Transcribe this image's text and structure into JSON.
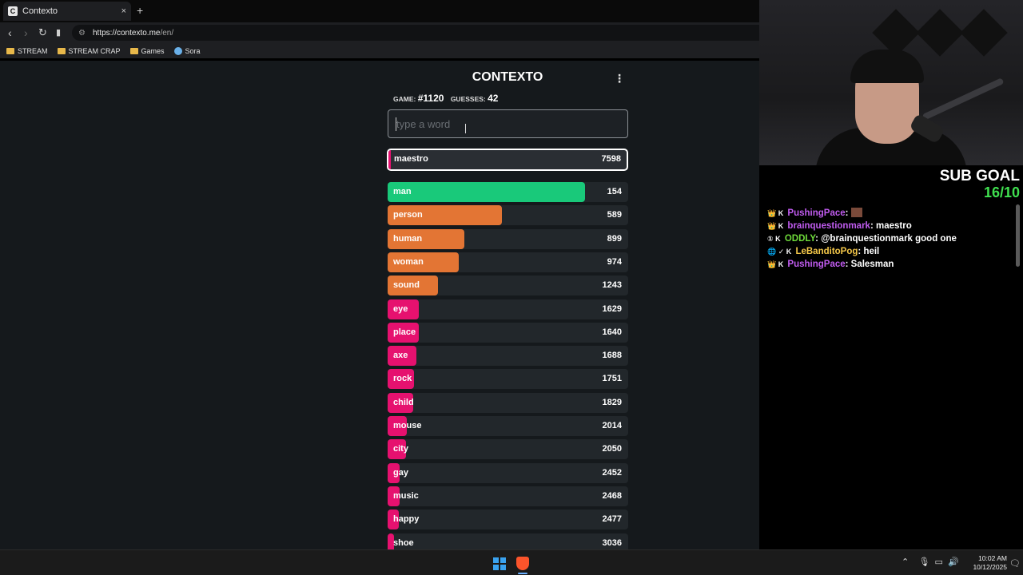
{
  "browser": {
    "tab_title": "Contexto",
    "tab_favicon": "C",
    "new_tab": "+",
    "tab_close": "×",
    "url_host": "https://contexto.me",
    "url_path": "/en/",
    "bookmarks": [
      {
        "label": "STREAM",
        "icon": "folder-icon"
      },
      {
        "label": "STREAM CRAP",
        "icon": "folder-icon"
      },
      {
        "label": "Games",
        "icon": "folder-icon"
      },
      {
        "label": "Sora",
        "icon": "sora-icon"
      }
    ]
  },
  "contexto": {
    "title": "CONTEXTO",
    "menu": "⋮",
    "game_label": "GAME:",
    "game_number": "#1120",
    "guesses_label": "GUESSES:",
    "guesses_count": "42",
    "input_placeholder": "type a word",
    "latest": {
      "word": "maestro",
      "rank": "7598"
    },
    "guesses": [
      {
        "word": "man",
        "rank": "154",
        "fill": 0.82,
        "color": "#19c97a"
      },
      {
        "word": "person",
        "rank": "589",
        "fill": 0.475,
        "color": "#e37534"
      },
      {
        "word": "human",
        "rank": "899",
        "fill": 0.32,
        "color": "#e37534"
      },
      {
        "word": "woman",
        "rank": "974",
        "fill": 0.295,
        "color": "#e37534"
      },
      {
        "word": "sound",
        "rank": "1243",
        "fill": 0.21,
        "color": "#e37534"
      },
      {
        "word": "eye",
        "rank": "1629",
        "fill": 0.13,
        "color": "#e6116f"
      },
      {
        "word": "place",
        "rank": "1640",
        "fill": 0.13,
        "color": "#e6116f"
      },
      {
        "word": "axe",
        "rank": "1688",
        "fill": 0.12,
        "color": "#e6116f"
      },
      {
        "word": "rock",
        "rank": "1751",
        "fill": 0.11,
        "color": "#e6116f"
      },
      {
        "word": "child",
        "rank": "1829",
        "fill": 0.105,
        "color": "#e6116f"
      },
      {
        "word": "mouse",
        "rank": "2014",
        "fill": 0.08,
        "color": "#e6116f"
      },
      {
        "word": "city",
        "rank": "2050",
        "fill": 0.075,
        "color": "#e6116f"
      },
      {
        "word": "gay",
        "rank": "2452",
        "fill": 0.05,
        "color": "#e6116f"
      },
      {
        "word": "music",
        "rank": "2468",
        "fill": 0.05,
        "color": "#e6116f"
      },
      {
        "word": "happy",
        "rank": "2477",
        "fill": 0.045,
        "color": "#e6116f"
      },
      {
        "word": "shoe",
        "rank": "3036",
        "fill": 0.025,
        "color": "#e6116f"
      }
    ]
  },
  "stream": {
    "sub_goal_label": "SUB GOAL",
    "sub_goal_value": "16/10",
    "chat": [
      {
        "badges": "👑 K",
        "user": "PushingPace",
        "user_color": "purple",
        "msg": "",
        "emote": true
      },
      {
        "badges": "👑 K",
        "user": "brainquestionmark",
        "user_color": "purple",
        "msg": "maestro",
        "emote": false
      },
      {
        "badges": "① K",
        "user": "ODDLY",
        "user_color": "green",
        "msg": "@brainquestionmark good one",
        "emote": false
      },
      {
        "badges": "🌐 ✓ K",
        "user": "LeBanditoPog",
        "user_color": "yellow",
        "msg": "heil",
        "emote": false
      },
      {
        "badges": "👑 K",
        "user": "PushingPace",
        "user_color": "purple",
        "msg": "Salesman",
        "emote": false
      }
    ]
  },
  "taskbar": {
    "time": "10:02 AM",
    "date": "10/12/2025",
    "tray_icons": [
      "chevron-up-icon",
      "mic-icon",
      "monitor-icon",
      "speaker-icon"
    ]
  }
}
